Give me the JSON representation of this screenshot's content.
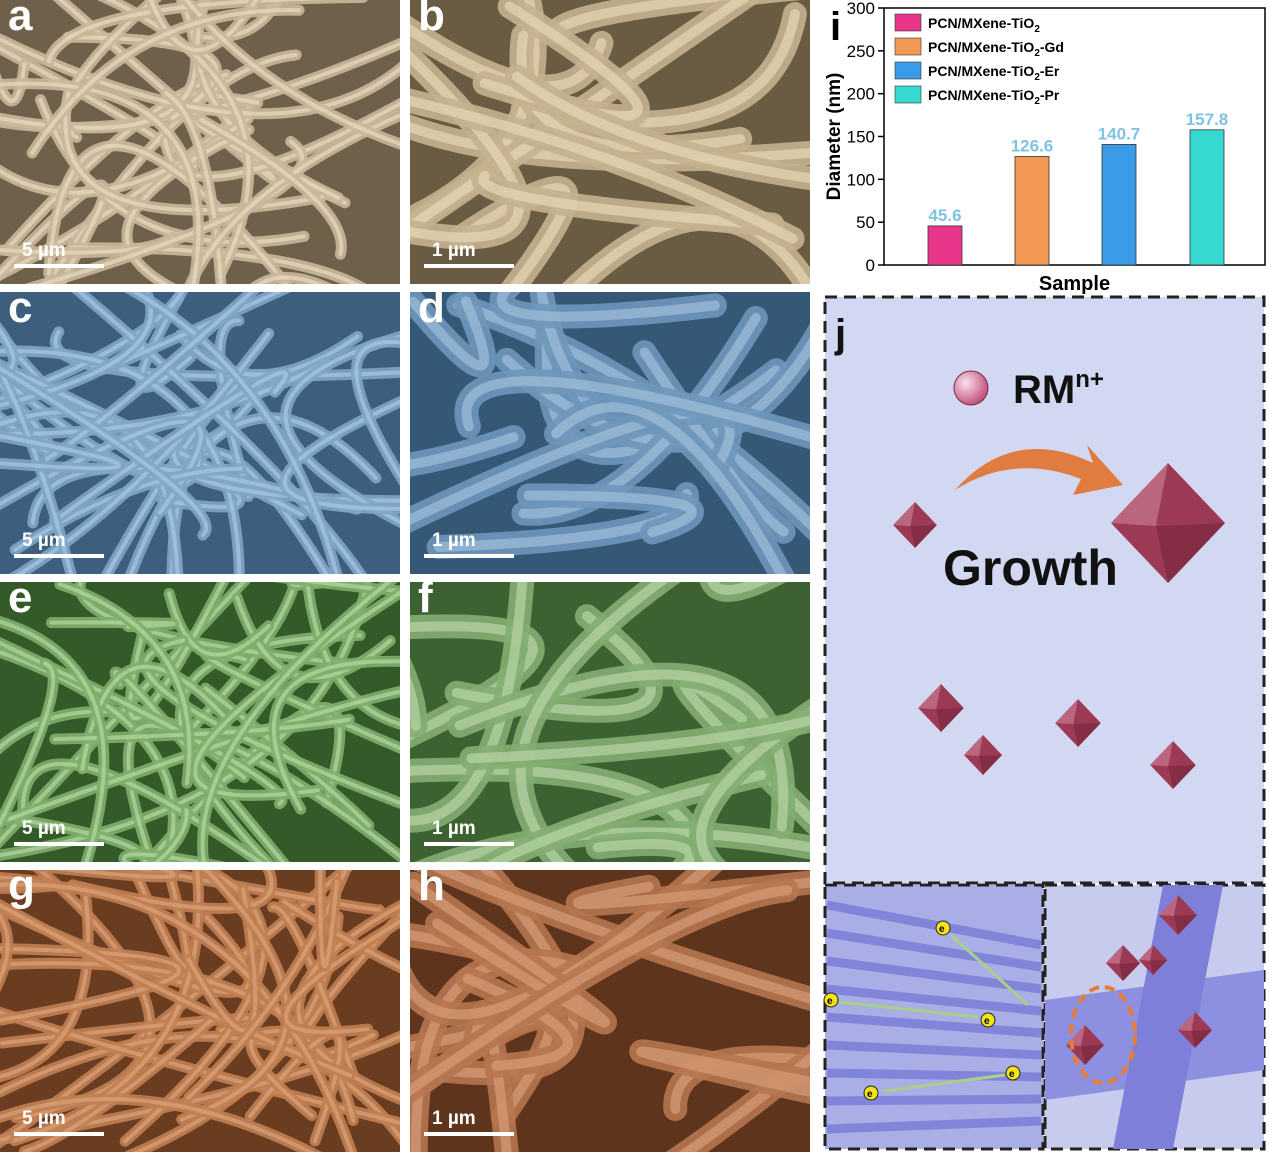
{
  "panels": [
    {
      "label": "a",
      "scale": "5 µm",
      "color": "#c9b89a",
      "fiber": "#e8dcc2",
      "dark": "#6e604a"
    },
    {
      "label": "b",
      "scale": "1 µm",
      "color": "#c4b18f",
      "fiber": "#e6d7b8",
      "dark": "#6a5b43"
    },
    {
      "label": "c",
      "scale": "5 µm",
      "color": "#7fa6c8",
      "fiber": "#a9c8e2",
      "dark": "#3d5e7c"
    },
    {
      "label": "d",
      "scale": "1 µm",
      "color": "#6f97ba",
      "fiber": "#9fbfda",
      "dark": "#365877"
    },
    {
      "label": "e",
      "scale": "5 µm",
      "color": "#7fae6c",
      "fiber": "#b6d8a2",
      "dark": "#355a2a"
    },
    {
      "label": "f",
      "scale": "1 µm",
      "color": "#84ad72",
      "fiber": "#b8d6a6",
      "dark": "#3e6132"
    },
    {
      "label": "g",
      "scale": "5 µm",
      "color": "#c07f52",
      "fiber": "#dba27a",
      "dark": "#6b3d20"
    },
    {
      "label": "h",
      "scale": "1 µm",
      "color": "#b57650",
      "fiber": "#d69d77",
      "dark": "#5f341c"
    }
  ],
  "chart_data": {
    "type": "bar",
    "panel_label": "i",
    "categories": [
      "PCN/MXene-TiO2",
      "PCN/MXene-TiO2-Gd",
      "PCN/MXene-TiO2-Er",
      "PCN/MXene-TiO2-Pr"
    ],
    "legend_base": "PCN/MXene-TiO",
    "legend_suffix": [
      "",
      "-Gd",
      "-Er",
      "-Pr"
    ],
    "legend_sub": "2",
    "values": [
      45.6,
      126.6,
      140.7,
      157.8
    ],
    "value_labels": [
      "45.6",
      "126.6",
      "140.7",
      "157.8"
    ],
    "colors": [
      "#e8378a",
      "#f29a55",
      "#3a9be8",
      "#37d8cf"
    ],
    "label_color": "#7fc3e3",
    "xlabel": "Sample",
    "ylabel": "Diameter (nm)",
    "ylim": [
      0,
      300
    ],
    "yticks": [
      0,
      50,
      100,
      150,
      200,
      250,
      300
    ],
    "legend_position": "top-left"
  },
  "schematic": {
    "label": "j",
    "ion": "RM",
    "ion_sup": "n+",
    "growth": "Growth",
    "bg": "#d3d8f2",
    "crystal": "#9c3a55",
    "arrow": "#e07c40",
    "electron": "e",
    "electron_sup": "-"
  }
}
